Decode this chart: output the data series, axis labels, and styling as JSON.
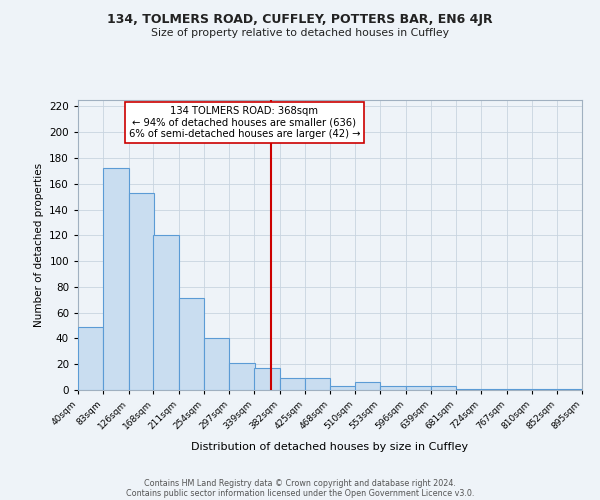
{
  "title": "134, TOLMERS ROAD, CUFFLEY, POTTERS BAR, EN6 4JR",
  "subtitle": "Size of property relative to detached houses in Cuffley",
  "xlabel": "Distribution of detached houses by size in Cuffley",
  "ylabel": "Number of detached properties",
  "bar_left_edges": [
    40,
    83,
    126,
    168,
    211,
    254,
    297,
    339,
    382,
    425,
    468,
    510,
    553,
    596,
    639,
    681,
    724,
    767,
    810,
    852
  ],
  "bar_heights": [
    49,
    172,
    153,
    120,
    71,
    40,
    21,
    17,
    9,
    9,
    3,
    6,
    3,
    3,
    3,
    1,
    1,
    1,
    1,
    1
  ],
  "bin_width": 43,
  "tick_labels": [
    "40sqm",
    "83sqm",
    "126sqm",
    "168sqm",
    "211sqm",
    "254sqm",
    "297sqm",
    "339sqm",
    "382sqm",
    "425sqm",
    "468sqm",
    "510sqm",
    "553sqm",
    "596sqm",
    "639sqm",
    "681sqm",
    "724sqm",
    "767sqm",
    "810sqm",
    "852sqm",
    "895sqm"
  ],
  "bar_fill_color": "#c9ddf0",
  "bar_edge_color": "#5b9bd5",
  "vline_x": 368,
  "vline_color": "#cc0000",
  "ylim": [
    0,
    225
  ],
  "yticks": [
    0,
    20,
    40,
    60,
    80,
    100,
    120,
    140,
    160,
    180,
    200,
    220
  ],
  "annotation_title": "134 TOLMERS ROAD: 368sqm",
  "annotation_line1": "← 94% of detached houses are smaller (636)",
  "annotation_line2": "6% of semi-detached houses are larger (42) →",
  "bg_color": "#eef3f8",
  "footer1": "Contains HM Land Registry data © Crown copyright and database right 2024.",
  "footer2": "Contains public sector information licensed under the Open Government Licence v3.0."
}
